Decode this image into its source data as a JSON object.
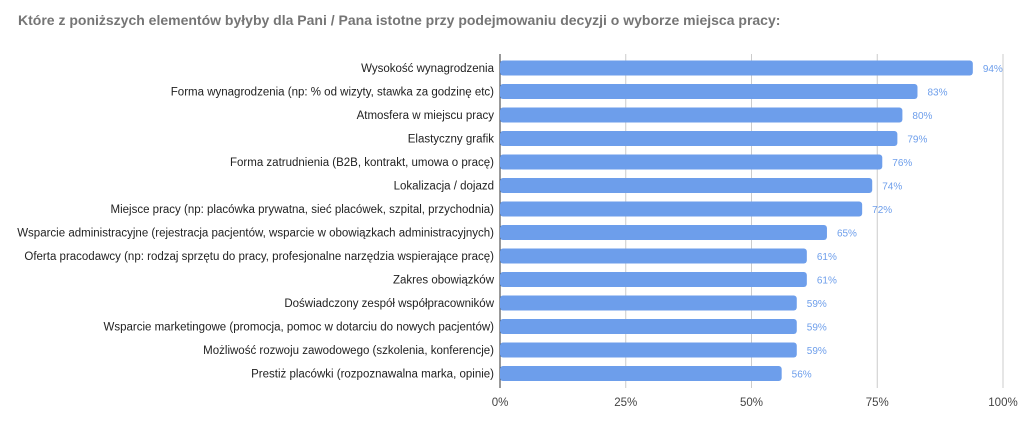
{
  "chart_data": {
    "type": "bar",
    "orientation": "horizontal",
    "title": "Które z poniższych elementów byłyby dla Pani / Pana istotne przy podejmowaniu decyzji o wyborze miejsca pracy:",
    "categories": [
      "Wysokość wynagrodzenia",
      "Forma wynagrodzenia (np: % od wizyty, stawka za godzinę etc)",
      "Atmosfera w miejscu pracy",
      "Elastyczny grafik",
      "Forma zatrudnienia (B2B, kontrakt, umowa o pracę)",
      "Lokalizacja / dojazd",
      "Miejsce pracy (np: placówka prywatna, sieć placówek, szpital, przychodnia)",
      "Wsparcie administracyjne (rejestracja pacjentów, wsparcie w obowiązkach administracyjnych)",
      "Oferta pracodawcy (np: rodzaj sprzętu do pracy, profesjonalne narzędzia wspierające pracę)",
      "Zakres obowiązków",
      "Doświadczony zespół współpracowników",
      "Wsparcie marketingowe (promocja, pomoc w dotarciu do nowych pacjentów)",
      "Możliwość rozwoju zawodowego (szkolenia, konferencje)",
      "Prestiż placówki (rozpoznawalna marka, opinie)"
    ],
    "values": [
      94,
      83,
      80,
      79,
      76,
      74,
      72,
      65,
      61,
      61,
      59,
      59,
      59,
      56
    ],
    "value_labels": [
      "94%",
      "83%",
      "80%",
      "79%",
      "76%",
      "74%",
      "72%",
      "65%",
      "61%",
      "61%",
      "59%",
      "59%",
      "59%",
      "56%"
    ],
    "xlim": [
      0,
      100
    ],
    "x_ticks": [
      0,
      25,
      50,
      75,
      100
    ],
    "x_tick_labels": [
      "0%",
      "25%",
      "50%",
      "75%",
      "100%"
    ],
    "grid": true,
    "colors": {
      "bar": "#6d9eeb",
      "value_label": "#6d9eeb",
      "grid": "#cccccc",
      "title": "#757575"
    }
  }
}
